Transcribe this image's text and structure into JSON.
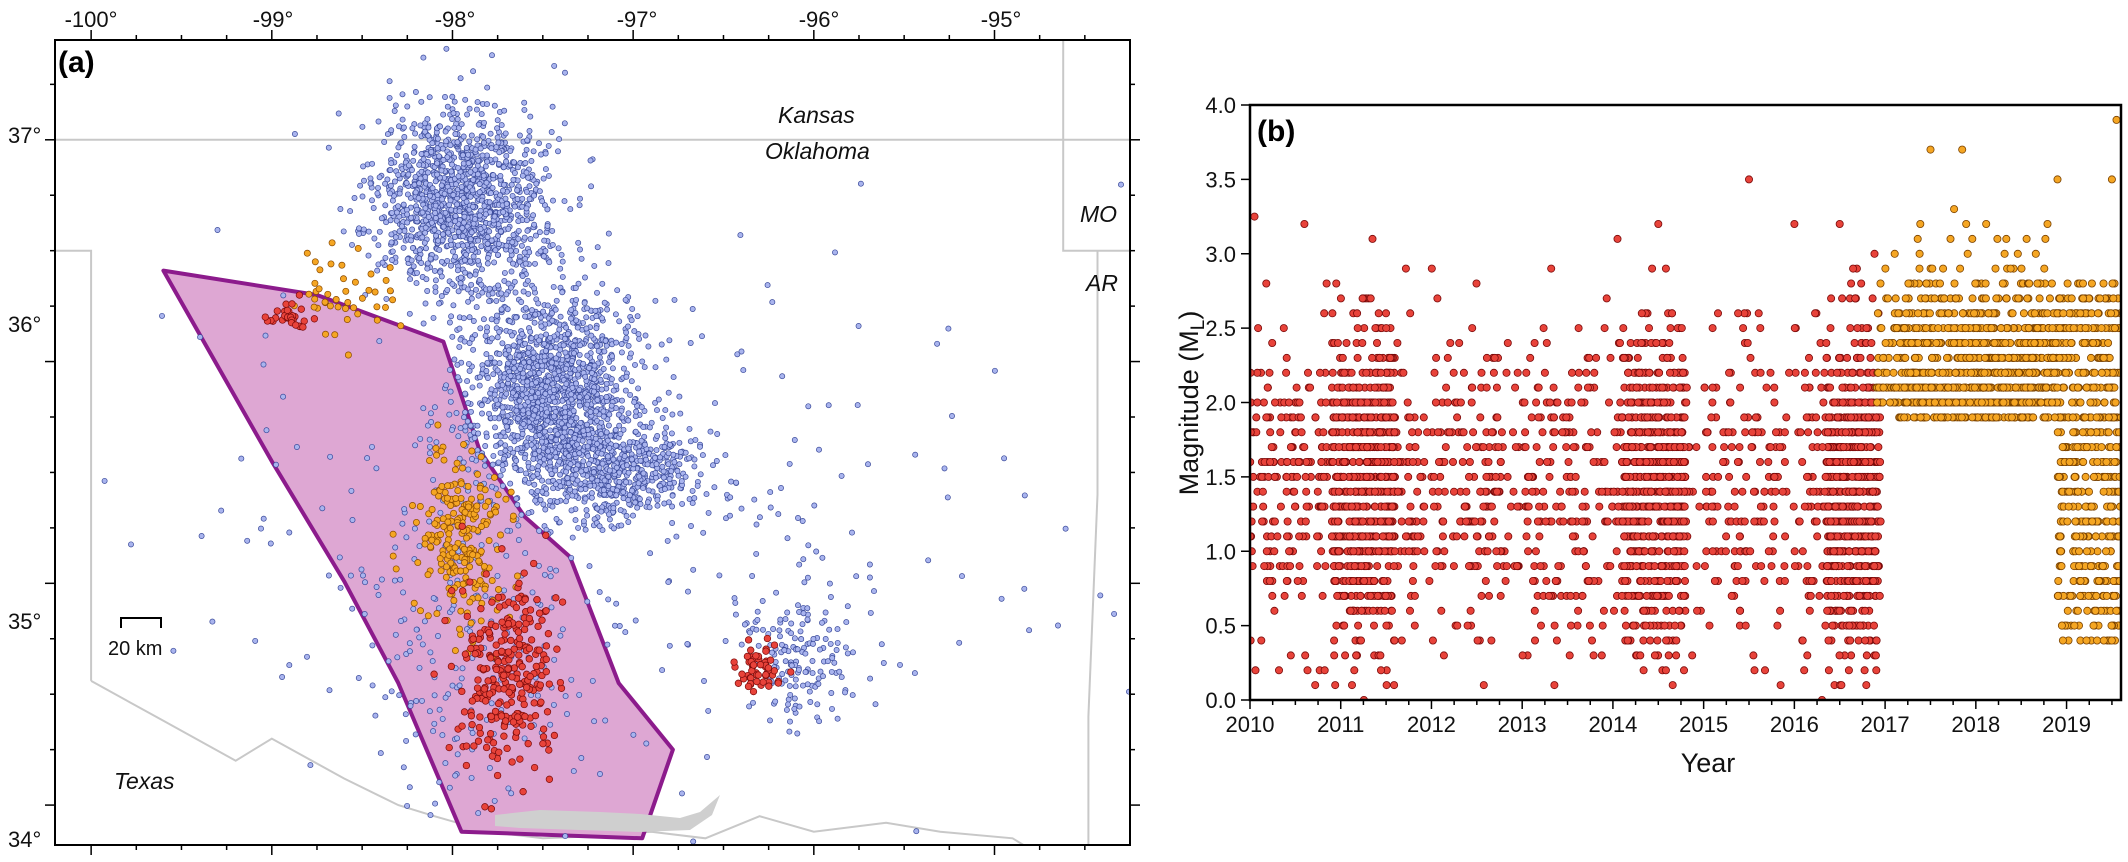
{
  "colors": {
    "background_seismicity": "#a9b4ee",
    "background_seismicity_edge": "#3a4a9a",
    "red_events": "#e8433a",
    "orange_events": "#f5a623",
    "study_polygon_fill": "#dea7d3",
    "study_polygon_edge": "#8c1b8c",
    "state_border": "#c8c8c8",
    "frame": "#000000"
  },
  "chart_data": [
    {
      "panel_label": "(a)",
      "type": "scatter",
      "subtype": "epicenter map",
      "xlim": [
        -100.2,
        -94.25
      ],
      "ylim": [
        33.82,
        37.45
      ],
      "x_ticks": [
        -100,
        -99,
        -98,
        -97,
        -96,
        -95
      ],
      "x_tick_labels": [
        "-100°",
        "-99°",
        "-98°",
        "-97°",
        "-96°",
        "-95°"
      ],
      "y_ticks": [
        34,
        35,
        36,
        37
      ],
      "y_tick_labels": [
        "34°",
        "35°",
        "36°",
        "37°"
      ],
      "region_labels": [
        "Kansas",
        "Oklahoma",
        "MO",
        "AR",
        "Texas"
      ],
      "scale_bar": "20 km",
      "study_area_polygon": [
        [
          -99.6,
          36.41
        ],
        [
          -98.75,
          36.3
        ],
        [
          -98.05,
          36.09
        ],
        [
          -97.85,
          35.6
        ],
        [
          -97.6,
          35.3
        ],
        [
          -97.35,
          35.12
        ],
        [
          -97.08,
          34.55
        ],
        [
          -96.78,
          34.25
        ],
        [
          -96.95,
          33.85
        ],
        [
          -97.95,
          33.88
        ],
        [
          -98.3,
          34.55
        ],
        [
          -98.6,
          35.01
        ],
        [
          -99.0,
          35.55
        ]
      ],
      "clusters": [
        {
          "category": "background",
          "region": "north-central Oklahoma",
          "center": [
            -97.95,
            36.72
          ],
          "spread": [
            0.42,
            0.38
          ],
          "approx_count": 1300
        },
        {
          "category": "background",
          "region": "central Oklahoma",
          "center": [
            -97.45,
            35.85
          ],
          "spread": [
            0.42,
            0.42
          ],
          "approx_count": 1500
        },
        {
          "category": "background",
          "region": "central Oklahoma south",
          "center": [
            -97.05,
            35.5
          ],
          "spread": [
            0.4,
            0.2
          ],
          "approx_count": 500
        },
        {
          "category": "background",
          "region": "southeast",
          "center": [
            -96.05,
            34.7
          ],
          "spread": [
            0.3,
            0.3
          ],
          "approx_count": 160
        },
        {
          "category": "background",
          "region": "scattered",
          "center": [
            -97.2,
            35.2
          ],
          "spread": [
            2.2,
            1.2
          ],
          "approx_count": 260
        },
        {
          "category": "background",
          "region": "study area",
          "center": [
            -97.95,
            34.8
          ],
          "spread": [
            0.55,
            0.7
          ],
          "approx_count": 160
        },
        {
          "category": "orange",
          "region": "study area",
          "center": [
            -97.95,
            35.2
          ],
          "spread": [
            0.22,
            0.38
          ],
          "approx_count": 230
        },
        {
          "category": "orange",
          "region": "north",
          "center": [
            -98.6,
            36.3
          ],
          "spread": [
            0.3,
            0.18
          ],
          "approx_count": 45
        },
        {
          "category": "red",
          "region": "study area",
          "center": [
            -97.7,
            34.6
          ],
          "spread": [
            0.25,
            0.4
          ],
          "approx_count": 280
        },
        {
          "category": "red",
          "region": "southeast",
          "center": [
            -96.3,
            34.62
          ],
          "spread": [
            0.12,
            0.1
          ],
          "approx_count": 60
        },
        {
          "category": "red",
          "region": "north",
          "center": [
            -98.9,
            36.2
          ],
          "spread": [
            0.12,
            0.05
          ],
          "approx_count": 30
        }
      ]
    },
    {
      "panel_label": "(b)",
      "type": "scatter",
      "xlabel": "Year",
      "ylabel_main": "Magnitude (M",
      "ylabel_subscript": "L",
      "ylabel_close": ")",
      "xlim": [
        2010,
        2019.6
      ],
      "ylim": [
        0.0,
        4.0
      ],
      "x_ticks": [
        2010,
        2011,
        2012,
        2013,
        2014,
        2015,
        2016,
        2017,
        2018,
        2019
      ],
      "x_tick_labels": [
        "2010",
        "2011",
        "2012",
        "2013",
        "2014",
        "2015",
        "2016",
        "2017",
        "2018",
        "2019"
      ],
      "y_ticks": [
        0.0,
        0.5,
        1.0,
        1.5,
        2.0,
        2.5,
        3.0,
        3.5,
        4.0
      ],
      "y_tick_labels": [
        "0.0",
        "0.5",
        "1.0",
        "1.5",
        "2.0",
        "2.5",
        "3.0",
        "3.5",
        "4.0"
      ],
      "magnitude_step": 0.1,
      "series": [
        {
          "category": "red",
          "time_span": [
            2010.0,
            2016.95
          ],
          "magnitude_range": [
            0.0,
            3.5
          ],
          "approx_count": 3200,
          "density_peaks": [
            {
              "time_range": [
                2010.9,
                2011.6
              ],
              "magnitude_range": [
                0.3,
                3.15
              ]
            },
            {
              "time_range": [
                2014.1,
                2014.8
              ],
              "magnitude_range": [
                0.05,
                3.2
              ]
            },
            {
              "time_range": [
                2016.35,
                2016.95
              ],
              "magnitude_range": [
                0.0,
                3.2
              ]
            }
          ],
          "notable_events": [
            [
              2010.05,
              3.25
            ],
            [
              2010.6,
              3.2
            ],
            [
              2011.35,
              3.1
            ],
            [
              2014.05,
              3.1
            ],
            [
              2014.5,
              3.2
            ],
            [
              2015.5,
              3.5
            ],
            [
              2016.0,
              3.2
            ],
            [
              2016.5,
              3.2
            ]
          ]
        },
        {
          "category": "orange",
          "time_span": [
            2016.9,
            2019.6
          ],
          "magnitude_range": [
            0.3,
            3.9
          ],
          "approx_count": 1500,
          "notable_events": [
            [
              2017.5,
              3.7
            ],
            [
              2017.85,
              3.7
            ],
            [
              2019.55,
              3.9
            ],
            [
              2018.9,
              3.5
            ],
            [
              2019.5,
              3.5
            ]
          ]
        }
      ]
    }
  ]
}
